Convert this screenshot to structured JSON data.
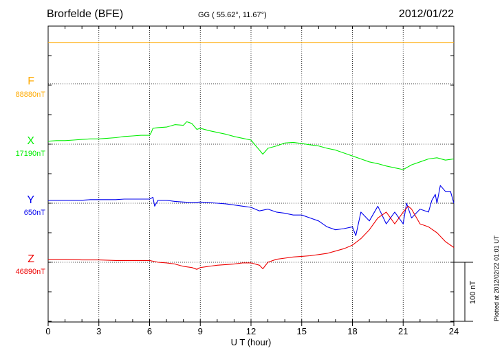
{
  "header": {
    "station": "Brorfelde (BFE)",
    "coords": "GG ( 55.62°,  11.67°)",
    "date": "2012/01/22"
  },
  "footer": {
    "plotted": "Plotted at 2012/02/22 01:01 UT",
    "scale": "100 nT"
  },
  "chart_data": {
    "type": "line",
    "xlabel": "U T (hour)",
    "xlim": [
      0,
      24
    ],
    "xticks": [
      0,
      3,
      6,
      9,
      12,
      15,
      18,
      21,
      24
    ],
    "grid": true,
    "scale_bar_nT": 100,
    "series": [
      {
        "name": "F",
        "baseline": "88880nT",
        "color": "#ffaa00",
        "offset_nT": 70,
        "x": [
          0,
          24
        ],
        "y": [
          0,
          0
        ]
      },
      {
        "name": "X",
        "baseline": "17190nT",
        "color": "#00ee00",
        "offset_nT": 5,
        "x": [
          0,
          0.5,
          1,
          1.5,
          2,
          2.5,
          3,
          3.5,
          4,
          4.5,
          5,
          5.5,
          6,
          6.1,
          6.2,
          6.5,
          7,
          7.5,
          8,
          8.2,
          8.5,
          8.8,
          9,
          9.5,
          10,
          10.5,
          11,
          11.5,
          12,
          12.2,
          12.5,
          12.7,
          13,
          13.5,
          14,
          14.5,
          15,
          15.5,
          16,
          16.5,
          17,
          17.5,
          18,
          18.5,
          19,
          19.5,
          20,
          20.5,
          21,
          21.5,
          22,
          22.5,
          23,
          23.5,
          24
        ],
        "y": [
          0,
          1,
          1,
          2,
          3,
          4,
          4,
          5,
          6,
          8,
          9,
          10,
          10,
          15,
          22,
          23,
          24,
          28,
          27,
          33,
          30,
          20,
          22,
          18,
          15,
          12,
          8,
          5,
          2,
          -5,
          -15,
          -22,
          -12,
          -8,
          -3,
          -2,
          -4,
          -6,
          -8,
          -12,
          -15,
          -20,
          -25,
          -30,
          -35,
          -38,
          -42,
          -45,
          -48,
          -40,
          -35,
          -30,
          -28,
          -32,
          -30
        ]
      },
      {
        "name": "Y",
        "baseline": "650nT",
        "color": "#0000ee",
        "offset_nT": 5,
        "x": [
          0,
          0.5,
          1,
          1.5,
          2,
          2.5,
          3,
          3.5,
          4,
          4.5,
          5,
          5.5,
          6,
          6.2,
          6.3,
          6.5,
          7,
          7.5,
          8,
          8.5,
          9,
          9.5,
          10,
          10.5,
          11,
          11.5,
          12,
          12.5,
          13,
          13.5,
          14,
          14.5,
          15,
          15.5,
          16,
          16.5,
          17,
          17.5,
          18,
          18.2,
          18.5,
          19,
          19.5,
          20,
          20.5,
          21,
          21.2,
          21.5,
          22,
          22.5,
          22.7,
          22.9,
          23,
          23.2,
          23.5,
          23.8,
          24
        ],
        "y": [
          0,
          0,
          0,
          0,
          0,
          1,
          1,
          1,
          1,
          2,
          2,
          2,
          2,
          5,
          -10,
          0,
          0,
          -2,
          -3,
          -4,
          -3,
          -4,
          -5,
          -6,
          -8,
          -10,
          -12,
          -18,
          -15,
          -20,
          -22,
          -25,
          -25,
          -30,
          -35,
          -45,
          -50,
          -48,
          -45,
          -60,
          -20,
          -35,
          -10,
          -40,
          -20,
          -40,
          -5,
          -30,
          -15,
          -20,
          0,
          10,
          -5,
          25,
          15,
          15,
          -5
        ]
      },
      {
        "name": "Z",
        "baseline": "46890nT",
        "color": "#ee0000",
        "offset_nT": 5,
        "x": [
          0,
          0.5,
          1,
          2,
          3,
          4,
          5,
          6,
          6.5,
          7,
          7.5,
          8,
          8.5,
          8.8,
          9,
          9.5,
          10,
          10.5,
          11,
          11.5,
          12,
          12.5,
          12.7,
          13,
          13.5,
          14,
          14.5,
          15,
          15.5,
          16,
          16.5,
          17,
          17.5,
          18,
          18.5,
          19,
          19.5,
          20,
          20.5,
          21,
          21.3,
          21.5,
          22,
          22.5,
          23,
          23.5,
          24
        ],
        "y": [
          0,
          0,
          0,
          -1,
          -1,
          -2,
          -2,
          -2,
          -5,
          -6,
          -8,
          -12,
          -14,
          -17,
          -14,
          -12,
          -10,
          -9,
          -8,
          -6,
          -6,
          -10,
          -16,
          -5,
          0,
          2,
          4,
          5,
          6,
          8,
          10,
          14,
          18,
          24,
          35,
          50,
          70,
          80,
          60,
          80,
          90,
          85,
          60,
          55,
          45,
          30,
          20
        ]
      }
    ]
  }
}
